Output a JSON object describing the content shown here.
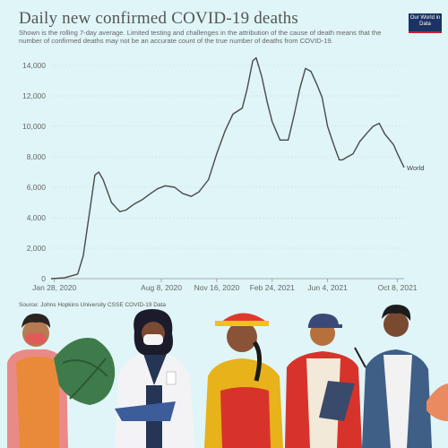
{
  "header": {
    "title": "Daily new confirmed COVID-19 deaths",
    "subtitle": "Shown is the rolling 7-day average. Limited testing and challenges in the attribution of the cause of death means that the number of confirmed deaths may not be an accurate count of the true number of deaths from COVID-19.",
    "logo_text": "Our World in Data"
  },
  "footer": {
    "source": "Source: Johns Hopkins University CSSE COVID-19 Data"
  },
  "illustration": {
    "description_icon": "people-workers-illustration"
  },
  "colors": {
    "background": "#dff5f7",
    "line": "#4a4a4a",
    "grid": "#cfe3e6",
    "logo_bg": "#1a3365",
    "logo_accent": "#c8202f"
  },
  "chart_data": {
    "type": "line",
    "title": "Daily new confirmed COVID-19 deaths",
    "xlabel": "",
    "ylabel": "",
    "ylim": [
      0,
      14000
    ],
    "y_ticks": [
      0,
      2000,
      4000,
      6000,
      8000,
      10000,
      12000,
      14000
    ],
    "y_tick_labels": [
      "0",
      "2,000",
      "4,000",
      "6,000",
      "8,000",
      "10,000",
      "12,000",
      "14,000"
    ],
    "x_tick_labels": [
      "Jan 28, 2020",
      "Aug 8, 2020",
      "Nov 16, 2020",
      "Feb 24, 2021",
      "Jun 4, 2021",
      "Oct 8, 2021"
    ],
    "grid": true,
    "series": [
      {
        "name": "World",
        "x": [
          "2020-01-22",
          "2020-02-15",
          "2020-03-10",
          "2020-03-20",
          "2020-04-01",
          "2020-04-10",
          "2020-04-17",
          "2020-04-25",
          "2020-05-10",
          "2020-05-25",
          "2020-06-05",
          "2020-06-20",
          "2020-07-05",
          "2020-07-20",
          "2020-08-01",
          "2020-08-15",
          "2020-09-01",
          "2020-09-15",
          "2020-10-01",
          "2020-10-15",
          "2020-11-01",
          "2020-11-16",
          "2020-12-01",
          "2020-12-15",
          "2021-01-01",
          "2021-01-10",
          "2021-01-20",
          "2021-01-26",
          "2021-02-05",
          "2021-02-15",
          "2021-02-24",
          "2021-03-10",
          "2021-03-25",
          "2021-04-05",
          "2021-04-15",
          "2021-04-25",
          "2021-05-05",
          "2021-05-15",
          "2021-05-25",
          "2021-06-04",
          "2021-06-15",
          "2021-06-25",
          "2021-07-01",
          "2021-07-10",
          "2021-07-20",
          "2021-08-01",
          "2021-08-15",
          "2021-08-25",
          "2021-09-05",
          "2021-09-15",
          "2021-10-01",
          "2021-10-08",
          "2021-10-20"
        ],
        "y": [
          0,
          50,
          300,
          1500,
          4500,
          6800,
          7000,
          6500,
          5000,
          4400,
          4500,
          4900,
          5200,
          5600,
          5900,
          6100,
          6000,
          5600,
          5400,
          5700,
          6500,
          8200,
          9700,
          10800,
          11200,
          12500,
          14300,
          14500,
          13300,
          11600,
          10300,
          9100,
          9100,
          10800,
          12500,
          13800,
          13600,
          12800,
          11900,
          10000,
          8800,
          7800,
          7800,
          8000,
          8200,
          9000,
          9600,
          10000,
          10200,
          9500,
          8800,
          8200,
          7300
        ]
      }
    ]
  }
}
